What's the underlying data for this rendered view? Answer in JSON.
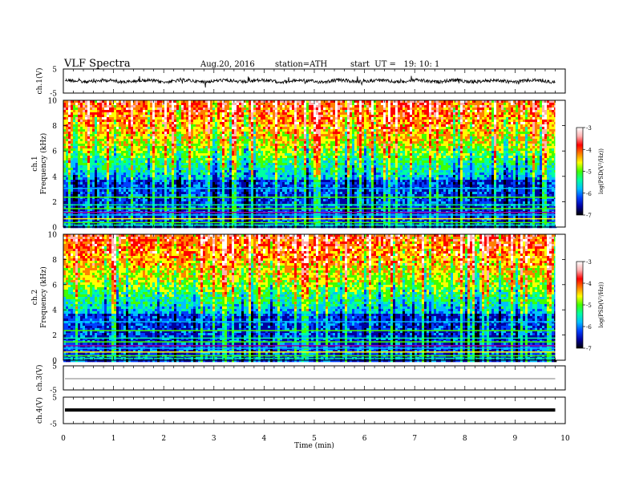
{
  "header": {
    "title": "VLF Spectra",
    "date": "Aug.20, 2016",
    "station": "station=ATH",
    "start": "start  UT =   19: 10: 1"
  },
  "chart_data": {
    "type": "heatmap",
    "xlabel": "Time (min)",
    "xlim": [
      0,
      10
    ],
    "xticks": [
      "0",
      "1",
      "2",
      "3",
      "4",
      "5",
      "6",
      "7",
      "8",
      "9",
      "10"
    ],
    "panels": [
      {
        "id": "ch1-waveform",
        "type": "line",
        "ylabel": "ch.1(V)",
        "ylim": [
          -5,
          5
        ],
        "yticks": [
          "5",
          "-5"
        ]
      },
      {
        "id": "ch1-spectrogram",
        "type": "heatmap",
        "ylabel_top": "ch.1",
        "ylabel": "Frequency (kHz)",
        "ylim": [
          0,
          10
        ],
        "yticks": [
          "10",
          "8",
          "6",
          "4",
          "2",
          "0"
        ],
        "colorbar": {
          "label": "log(PSD(V²/Hz))",
          "range": [
            -7,
            -3
          ],
          "ticks": [
            "-3",
            "-4",
            "-5",
            "-6",
            "-7"
          ]
        }
      },
      {
        "id": "ch2-spectrogram",
        "type": "heatmap",
        "ylabel_top": "ch.2",
        "ylabel": "Frequency (kHz)",
        "ylim": [
          0,
          10
        ],
        "yticks": [
          "10",
          "8",
          "6",
          "4",
          "2",
          "0"
        ],
        "colorbar": {
          "label": "log(PSD(V²/Hz))",
          "range": [
            -7,
            -3
          ],
          "ticks": [
            "-3",
            "-4",
            "-5",
            "-6",
            "-7"
          ]
        }
      },
      {
        "id": "ch3-waveform",
        "type": "line",
        "ylabel": "ch.3(V)",
        "ylim": [
          -5,
          5
        ],
        "yticks": [
          "5",
          "-5"
        ]
      },
      {
        "id": "ch4-waveform",
        "type": "line",
        "ylabel": "ch.4(V)",
        "ylim": [
          -5,
          5
        ],
        "yticks": [
          "5",
          "-5"
        ]
      }
    ],
    "time_end_min": 9.8,
    "grid": false
  },
  "colors": {
    "axis": "#000000",
    "colormap": [
      "#000000",
      "#0000a0",
      "#0040ff",
      "#00c0ff",
      "#00ffa0",
      "#40ff00",
      "#ffff00",
      "#ff8000",
      "#ff0000",
      "#ffb0b0",
      "#ffffff"
    ]
  }
}
